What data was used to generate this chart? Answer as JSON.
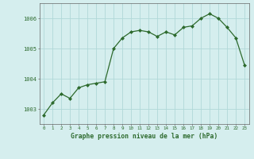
{
  "x": [
    0,
    1,
    2,
    3,
    4,
    5,
    6,
    7,
    8,
    9,
    10,
    11,
    12,
    13,
    14,
    15,
    16,
    17,
    18,
    19,
    20,
    21,
    22,
    23
  ],
  "y": [
    1002.8,
    1003.2,
    1003.5,
    1003.35,
    1003.7,
    1003.8,
    1003.85,
    1003.9,
    1005.0,
    1005.35,
    1005.55,
    1005.6,
    1005.55,
    1005.4,
    1005.55,
    1005.45,
    1005.7,
    1005.75,
    1006.0,
    1006.15,
    1006.0,
    1005.7,
    1005.35,
    1004.45
  ],
  "line_color": "#2d6a2d",
  "marker_color": "#2d6a2d",
  "bg_color": "#d5eeee",
  "grid_color": "#b0d8d8",
  "xlabel": "Graphe pression niveau de la mer (hPa)",
  "xlabel_color": "#2d6a2d",
  "tick_label_color": "#2d6a2d",
  "ylim": [
    1002.5,
    1006.5
  ],
  "yticks": [
    1003,
    1004,
    1005,
    1006
  ],
  "xlim": [
    -0.5,
    23.5
  ],
  "xticks": [
    0,
    1,
    2,
    3,
    4,
    5,
    6,
    7,
    8,
    9,
    10,
    11,
    12,
    13,
    14,
    15,
    16,
    17,
    18,
    19,
    20,
    21,
    22,
    23
  ]
}
